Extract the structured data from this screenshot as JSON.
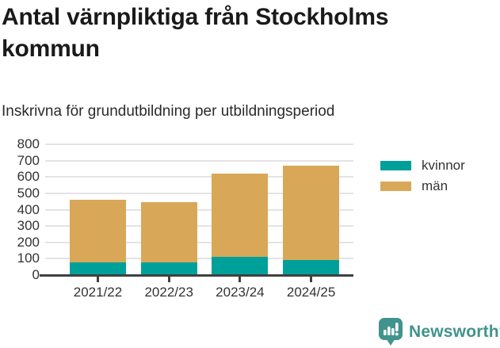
{
  "title": "Antal värnpliktiga från Stockholms kommun",
  "subtitle": "Inskrivna för grundutbildning per utbildningsperiod",
  "chart_data": {
    "type": "bar",
    "stacked": true,
    "categories": [
      "2021/22",
      "2022/23",
      "2023/24",
      "2024/25"
    ],
    "series": [
      {
        "name": "kvinnor",
        "color": "#00a09a",
        "values": [
          80,
          80,
          110,
          90
        ]
      },
      {
        "name": "män",
        "color": "#d8a858",
        "values": [
          380,
          365,
          510,
          580
        ]
      }
    ],
    "totals": [
      460,
      445,
      620,
      670
    ],
    "ylabel": "",
    "xlabel": "",
    "ylim": [
      0,
      800
    ],
    "yticks": [
      0,
      100,
      200,
      300,
      400,
      500,
      600,
      700,
      800
    ],
    "grid": true,
    "legend_position": "right",
    "legend_items": [
      {
        "label": "kvinnor",
        "color": "#00a09a"
      },
      {
        "label": "män",
        "color": "#d8a858"
      }
    ]
  },
  "colors": {
    "kvinnor": "#00a09a",
    "man": "#d8a858",
    "axis": "#3f4040",
    "grid": "#e4e4e4",
    "brand_teal": "#40948d"
  },
  "footer": {
    "brand": "Newsworthy",
    "logo_icon": "bar-chart-speech-bubble-icon"
  }
}
